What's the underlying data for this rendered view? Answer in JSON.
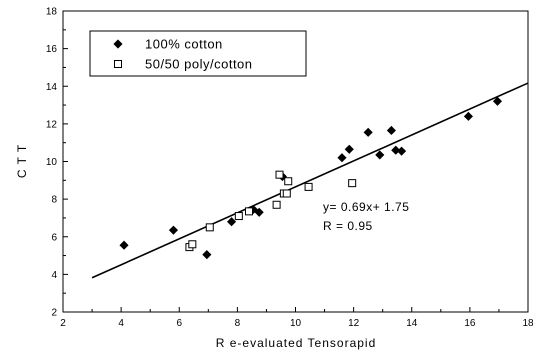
{
  "chart_data": {
    "type": "scatter",
    "xlabel": "R e-evaluated Tensorapid",
    "ylabel": "C T T",
    "xlim": [
      2,
      18
    ],
    "ylim": [
      2,
      18
    ],
    "xticks": [
      2,
      4,
      6,
      8,
      10,
      12,
      14,
      16,
      18
    ],
    "yticks": [
      2,
      4,
      6,
      8,
      10,
      12,
      14,
      16,
      18
    ],
    "grid": false,
    "legend_position": "top-left",
    "series": [
      {
        "name": "100% cotton",
        "marker": "diamond-filled",
        "points": [
          [
            4.1,
            5.55
          ],
          [
            5.8,
            6.35
          ],
          [
            6.95,
            5.05
          ],
          [
            7.8,
            6.8
          ],
          [
            8.55,
            7.45
          ],
          [
            8.75,
            7.3
          ],
          [
            9.55,
            9.2
          ],
          [
            11.6,
            10.2
          ],
          [
            11.85,
            10.65
          ],
          [
            12.5,
            11.55
          ],
          [
            12.9,
            10.35
          ],
          [
            13.3,
            11.65
          ],
          [
            13.45,
            10.6
          ],
          [
            13.65,
            10.55
          ],
          [
            15.95,
            12.4
          ],
          [
            16.95,
            13.2
          ]
        ]
      },
      {
        "name": "50/50 poly/cotton",
        "marker": "square-open",
        "points": [
          [
            6.35,
            5.45
          ],
          [
            6.45,
            5.6
          ],
          [
            7.05,
            6.5
          ],
          [
            8.05,
            7.1
          ],
          [
            8.4,
            7.35
          ],
          [
            9.35,
            7.7
          ],
          [
            9.45,
            9.3
          ],
          [
            9.6,
            8.3
          ],
          [
            9.75,
            8.95
          ],
          [
            9.7,
            8.3
          ],
          [
            10.45,
            8.65
          ],
          [
            11.95,
            8.85
          ]
        ]
      }
    ],
    "fit_line": {
      "slope": 0.69,
      "intercept": 1.75,
      "x_range": [
        3,
        18
      ]
    },
    "annotations": [
      "y= 0.69x+ 1.75",
      "R = 0.95"
    ]
  }
}
